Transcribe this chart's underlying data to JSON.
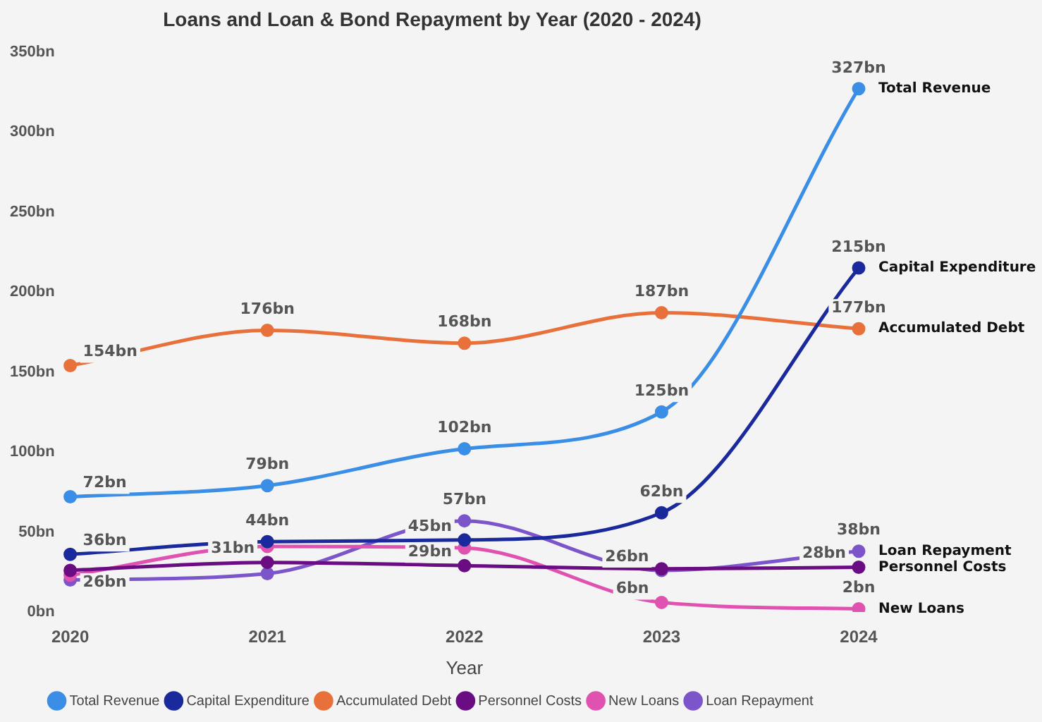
{
  "chart_data": {
    "type": "line",
    "title": "Loans and Loan & Bond Repayment by Year (2020 - 2024)",
    "xlabel": "Year",
    "categories": [
      "2020",
      "2021",
      "2022",
      "2023",
      "2024"
    ],
    "series": [
      {
        "name": "Total Revenue",
        "color": "#3a8ee6",
        "values": [
          72,
          79,
          102,
          125,
          327
        ],
        "value_labels": [
          "72bn",
          "79bn",
          "102bn",
          "125bn",
          "327bn"
        ]
      },
      {
        "name": "Capital Expenditure",
        "color": "#1a2a9c",
        "values": [
          36,
          44,
          45,
          62,
          215
        ],
        "value_labels": [
          "36bn",
          "44bn",
          "45bn",
          "62bn",
          "215bn"
        ]
      },
      {
        "name": "Accumulated Debt",
        "color": "#e8703a",
        "values": [
          154,
          176,
          168,
          187,
          177
        ],
        "value_labels": [
          "154bn",
          "176bn",
          "168bn",
          "187bn",
          "177bn"
        ]
      },
      {
        "name": "Personnel Costs",
        "color": "#6a0d83",
        "values": [
          26,
          31,
          29,
          27,
          28
        ],
        "value_labels": [
          "26bn",
          "31bn",
          "29bn",
          null,
          "28bn"
        ]
      },
      {
        "name": "New Loans",
        "color": "#e052b0",
        "values": [
          23,
          41,
          40,
          6,
          2
        ],
        "value_labels": [
          null,
          null,
          null,
          "6bn",
          "2bn"
        ]
      },
      {
        "name": "Loan Repayment",
        "color": "#7b55c9",
        "values": [
          20,
          24,
          57,
          26,
          38
        ],
        "value_labels": [
          null,
          null,
          "57bn",
          "26bn",
          "38bn"
        ]
      }
    ],
    "ylim": [
      0,
      350
    ],
    "yticks": [
      {
        "value": 0,
        "label": "0bn"
      },
      {
        "value": 50,
        "label": "50bn"
      },
      {
        "value": 100,
        "label": "100bn"
      },
      {
        "value": 150,
        "label": "150bn"
      },
      {
        "value": 200,
        "label": "200bn"
      },
      {
        "value": 250,
        "label": "250bn"
      },
      {
        "value": 300,
        "label": "300bn"
      },
      {
        "value": 350,
        "label": "350bn"
      }
    ],
    "grid": false,
    "legend": "bottom",
    "marker": "circle",
    "line_style": "solid"
  }
}
